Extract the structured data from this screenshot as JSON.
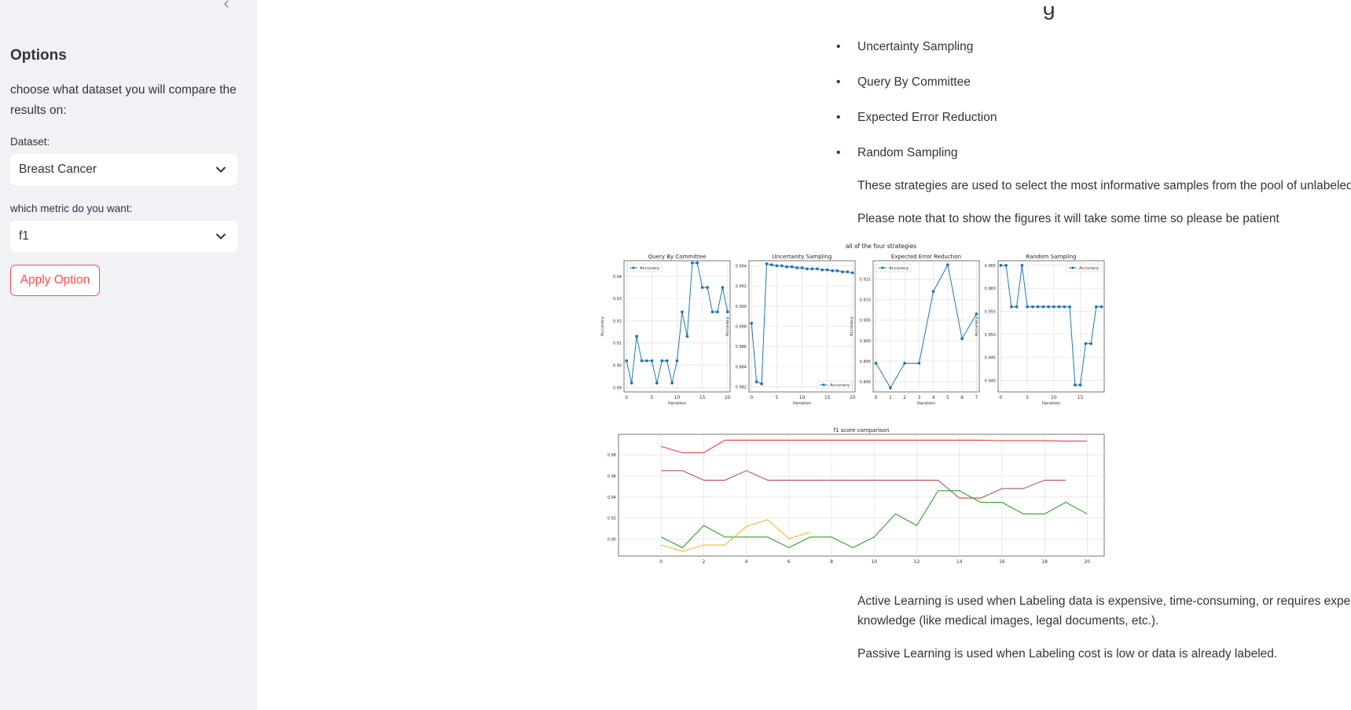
{
  "sidebar": {
    "collapse_glyph": "‹",
    "title": "Options",
    "description": "choose what dataset you will compare the results on:",
    "dataset_label": "Dataset:",
    "dataset_value": "Breast Cancer",
    "metric_label": "which metric do you want:",
    "metric_value": "f1",
    "apply_label": "Apply Option"
  },
  "main": {
    "header_fragment": "g",
    "strategies": [
      "Uncertainty Sampling",
      "Query By Committee",
      "Expected Error Reduction",
      "Random Sampling"
    ],
    "strategies_note": "These strategies are used to select the most informative samples from the pool of unlabeled data",
    "patience_note": "Please note that to show the figures it will take some time so please be patient",
    "active_note": "Active Learning is used when Labeling data is expensive, time-consuming, or requires expert knowledge (like medical images, legal documents, etc.).",
    "passive_note": "Passive Learning is used when Labeling cost is low or data is already labeled."
  },
  "colors": {
    "accent": "#ff4b4b",
    "series": "#1f77b4"
  },
  "chart_data": [
    {
      "type": "line",
      "suptitle": "all of the four strategies",
      "title": "Query By Committee",
      "xlabel": "Iteration",
      "ylabel": "Accuracy",
      "legend": [
        "Accuracy"
      ],
      "legend_loc": "upper-left",
      "xlim": [
        -0.5,
        20.5
      ],
      "ylim": [
        0.888,
        0.947
      ],
      "xticks": [
        0,
        5,
        10,
        15,
        20
      ],
      "yticks": [
        0.89,
        0.9,
        0.91,
        0.92,
        0.93,
        0.94
      ],
      "x": [
        0,
        1,
        2,
        3,
        4,
        5,
        6,
        7,
        8,
        9,
        10,
        11,
        12,
        13,
        14,
        15,
        16,
        17,
        18,
        19,
        20
      ],
      "y": [
        0.902,
        0.892,
        0.913,
        0.902,
        0.902,
        0.902,
        0.892,
        0.902,
        0.902,
        0.892,
        0.902,
        0.924,
        0.913,
        0.946,
        0.946,
        0.935,
        0.935,
        0.924,
        0.924,
        0.935,
        0.924
      ]
    },
    {
      "type": "line",
      "title": "Uncertainty Sampling",
      "xlabel": "Iteration",
      "ylabel": "Accuracy",
      "legend": [
        "Accuracy"
      ],
      "legend_loc": "lower-right",
      "xlim": [
        -0.5,
        20.5
      ],
      "ylim": [
        0.9815,
        0.9945
      ],
      "xticks": [
        0,
        5,
        10,
        15,
        20
      ],
      "yticks": [
        0.982,
        0.984,
        0.986,
        0.988,
        0.99,
        0.992,
        0.994
      ],
      "x": [
        0,
        1,
        2,
        3,
        4,
        5,
        6,
        7,
        8,
        9,
        10,
        11,
        12,
        13,
        14,
        15,
        16,
        17,
        18,
        19,
        20
      ],
      "y": [
        0.9883,
        0.9825,
        0.9823,
        0.9942,
        0.9941,
        0.994,
        0.994,
        0.9939,
        0.9939,
        0.9938,
        0.9938,
        0.9937,
        0.9937,
        0.9937,
        0.9936,
        0.9936,
        0.9935,
        0.9935,
        0.9934,
        0.9934,
        0.9933
      ]
    },
    {
      "type": "line",
      "title": "Expected Error Reduction",
      "xlabel": "Iteration",
      "ylabel": "Accuracy",
      "legend": [
        "Accuracy"
      ],
      "legend_loc": "upper-left",
      "xlim": [
        -0.2,
        7.2
      ],
      "ylim": [
        0.8875,
        0.9195
      ],
      "xticks": [
        0,
        1,
        2,
        3,
        4,
        5,
        6,
        7
      ],
      "yticks": [
        0.89,
        0.895,
        0.9,
        0.905,
        0.91,
        0.915
      ],
      "x": [
        0,
        1,
        2,
        3,
        4,
        5,
        6,
        7
      ],
      "y": [
        0.8945,
        0.8885,
        0.8945,
        0.8945,
        0.912,
        0.9185,
        0.9005,
        0.9065
      ]
    },
    {
      "type": "line",
      "title": "Random Sampling",
      "xlabel": "Iteration",
      "ylabel": "Accuracy",
      "legend": [
        "Accuracy"
      ],
      "legend_loc": "upper-right",
      "xlim": [
        -0.5,
        19.5
      ],
      "ylim": [
        0.9375,
        0.966
      ],
      "xticks": [
        0,
        5,
        10,
        15
      ],
      "yticks": [
        0.94,
        0.945,
        0.95,
        0.955,
        0.96,
        0.965
      ],
      "x": [
        0,
        1,
        2,
        3,
        4,
        5,
        6,
        7,
        8,
        9,
        10,
        11,
        12,
        13,
        14,
        15,
        16,
        17,
        18,
        19
      ],
      "y": [
        0.965,
        0.965,
        0.956,
        0.956,
        0.965,
        0.956,
        0.956,
        0.956,
        0.956,
        0.956,
        0.956,
        0.956,
        0.956,
        0.956,
        0.939,
        0.939,
        0.948,
        0.948,
        0.956,
        0.956
      ]
    },
    {
      "type": "line",
      "title": "f1 score comparison",
      "xlim": [
        -2,
        20.8
      ],
      "ylim": [
        0.884,
        0.9995
      ],
      "xticks": [
        0,
        2,
        4,
        6,
        8,
        10,
        12,
        14,
        16,
        18,
        20
      ],
      "yticks": [
        0.9,
        0.92,
        0.94,
        0.96,
        0.98
      ],
      "series": [
        {
          "color": "#e8393f",
          "x": [
            0,
            1,
            2,
            3,
            4,
            5,
            6,
            7,
            8,
            9,
            10,
            11,
            12,
            13,
            14,
            15,
            16,
            17,
            18,
            19,
            20
          ],
          "y": [
            0.988,
            0.982,
            0.982,
            0.994,
            0.994,
            0.994,
            0.994,
            0.994,
            0.994,
            0.994,
            0.994,
            0.994,
            0.994,
            0.994,
            0.994,
            0.994,
            0.9935,
            0.9935,
            0.9935,
            0.993,
            0.993
          ]
        },
        {
          "color": "#b5525a",
          "x": [
            0,
            1,
            2,
            3,
            4,
            5,
            6,
            7,
            8,
            9,
            10,
            11,
            12,
            13,
            14,
            15,
            16,
            17,
            18,
            19
          ],
          "y": [
            0.965,
            0.965,
            0.956,
            0.956,
            0.965,
            0.956,
            0.956,
            0.956,
            0.956,
            0.956,
            0.956,
            0.956,
            0.956,
            0.956,
            0.939,
            0.939,
            0.948,
            0.948,
            0.956,
            0.956
          ]
        },
        {
          "color": "#2ca02c",
          "x": [
            0,
            1,
            2,
            3,
            4,
            5,
            6,
            7,
            8,
            9,
            10,
            11,
            12,
            13,
            14,
            15,
            16,
            17,
            18,
            19,
            20
          ],
          "y": [
            0.902,
            0.892,
            0.913,
            0.902,
            0.902,
            0.902,
            0.892,
            0.902,
            0.902,
            0.892,
            0.902,
            0.924,
            0.913,
            0.946,
            0.946,
            0.935,
            0.935,
            0.924,
            0.924,
            0.935,
            0.924
          ]
        },
        {
          "color": "#f5b82e",
          "x": [
            0,
            1,
            2,
            3,
            4,
            5,
            6,
            7
          ],
          "y": [
            0.8945,
            0.8885,
            0.8945,
            0.8945,
            0.912,
            0.9185,
            0.9005,
            0.9065
          ]
        }
      ]
    }
  ]
}
